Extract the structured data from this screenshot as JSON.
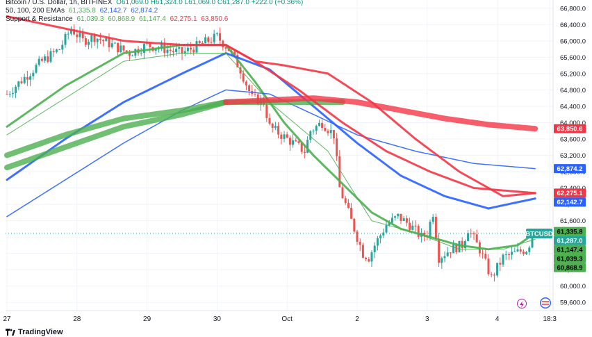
{
  "legend": {
    "symbol_line": "Bitcoin / U.S. Dollar, 1h, BITFINEX",
    "ohlc": "O61,069.0 H61,324.0 L61,069.0 C61,287.0 +222.0 (+0.36%)",
    "ema_label": "50, 100, 200 EMAs",
    "ema_values": [
      "61,335.8",
      "62,142.7",
      "62,874.2"
    ],
    "sr_label": "Support & Resistance",
    "sr_values": [
      "61,039.3",
      "60,868.9",
      "61,147.4",
      "62,275.1",
      "63,850.6"
    ]
  },
  "footer": {
    "brand": "TradingView"
  },
  "chart_data": {
    "type": "candlestick",
    "symbol": "BTCUSD",
    "ylim": [
      59400,
      67000
    ],
    "y_ticks": [
      59600,
      60000,
      60400,
      60800,
      61200,
      61600,
      62000,
      62400,
      62800,
      63200,
      63600,
      64000,
      64400,
      64800,
      65200,
      65600,
      66000,
      66400,
      66800
    ],
    "x_ticks": [
      "27",
      "28",
      "29",
      "30",
      "Oct",
      "2",
      "3",
      "4",
      "18:3"
    ],
    "x_tick_bars": [
      0,
      24,
      48,
      72,
      96,
      120,
      144,
      168,
      186
    ],
    "n_bars": 181,
    "last_price": 61287.0,
    "price_tags": [
      {
        "label": "61,335.8",
        "value": 61335.8,
        "color": "#4caf50"
      },
      {
        "label": "61,287.0",
        "value": 61287.0,
        "color": "#26a69a"
      },
      {
        "label": "61,147.4",
        "value": 61147.4,
        "color": "#4caf50"
      },
      {
        "label": "61,039.3",
        "value": 61039.3,
        "color": "#4caf50"
      },
      {
        "label": "60,868.9",
        "value": 60868.9,
        "color": "#4caf50"
      },
      {
        "label": "62,142.7",
        "value": 62142.7,
        "color": "#2962ff"
      },
      {
        "label": "62,275.1",
        "value": 62275.1,
        "color": "#f23645"
      },
      {
        "label": "62,874.2",
        "value": 62874.2,
        "color": "#2962ff"
      },
      {
        "label": "63,850.6",
        "value": 63850.6,
        "color": "#f23645"
      }
    ],
    "symbol_tag": "BTCUSD",
    "close_keypoints": [
      [
        0,
        64700
      ],
      [
        6,
        65100
      ],
      [
        12,
        65500
      ],
      [
        18,
        65800
      ],
      [
        22,
        66300
      ],
      [
        26,
        66000
      ],
      [
        30,
        66100
      ],
      [
        36,
        65900
      ],
      [
        42,
        65700
      ],
      [
        48,
        65900
      ],
      [
        54,
        65800
      ],
      [
        60,
        65700
      ],
      [
        66,
        65900
      ],
      [
        72,
        66100
      ],
      [
        76,
        65800
      ],
      [
        80,
        65300
      ],
      [
        84,
        64600
      ],
      [
        88,
        64500
      ],
      [
        90,
        63900
      ],
      [
        94,
        63700
      ],
      [
        98,
        63500
      ],
      [
        102,
        63300
      ],
      [
        104,
        63800
      ],
      [
        108,
        64000
      ],
      [
        112,
        63700
      ],
      [
        114,
        62400
      ],
      [
        118,
        61600
      ],
      [
        122,
        60800
      ],
      [
        124,
        60700
      ],
      [
        126,
        61000
      ],
      [
        130,
        61500
      ],
      [
        134,
        61700
      ],
      [
        138,
        61500
      ],
      [
        142,
        61200
      ],
      [
        144,
        61300
      ],
      [
        146,
        61800
      ],
      [
        148,
        60700
      ],
      [
        152,
        60900
      ],
      [
        156,
        61000
      ],
      [
        158,
        61400
      ],
      [
        162,
        60900
      ],
      [
        166,
        60200
      ],
      [
        170,
        60700
      ],
      [
        174,
        60800
      ],
      [
        178,
        60900
      ],
      [
        181,
        61287
      ]
    ],
    "series": [
      {
        "name": "EMA 50",
        "color": "#4caf50",
        "width": 3,
        "keypoints": [
          [
            0,
            63900
          ],
          [
            20,
            64900
          ],
          [
            40,
            65700
          ],
          [
            60,
            65900
          ],
          [
            75,
            65900
          ],
          [
            85,
            65000
          ],
          [
            95,
            64000
          ],
          [
            105,
            63200
          ],
          [
            115,
            62500
          ],
          [
            125,
            61800
          ],
          [
            135,
            61400
          ],
          [
            145,
            61200
          ],
          [
            155,
            61000
          ],
          [
            165,
            60900
          ],
          [
            175,
            61000
          ],
          [
            181,
            61300
          ]
        ]
      },
      {
        "name": "EMA 100",
        "color": "#2962ff",
        "width": 3,
        "keypoints": [
          [
            0,
            62600
          ],
          [
            20,
            63600
          ],
          [
            40,
            64500
          ],
          [
            60,
            65200
          ],
          [
            75,
            65700
          ],
          [
            90,
            65300
          ],
          [
            105,
            64400
          ],
          [
            120,
            63500
          ],
          [
            135,
            62700
          ],
          [
            150,
            62200
          ],
          [
            165,
            61900
          ],
          [
            181,
            62142.7
          ]
        ]
      },
      {
        "name": "EMA 200",
        "color": "#2962ff",
        "width": 1.5,
        "keypoints": [
          [
            0,
            61700
          ],
          [
            20,
            62600
          ],
          [
            40,
            63500
          ],
          [
            60,
            64300
          ],
          [
            75,
            64800
          ],
          [
            90,
            64700
          ],
          [
            105,
            64200
          ],
          [
            120,
            63700
          ],
          [
            140,
            63300
          ],
          [
            160,
            63000
          ],
          [
            181,
            62874.2
          ]
        ]
      },
      {
        "name": "S&R 1",
        "color": "#4caf50",
        "width": 1,
        "keypoints": [
          [
            0,
            63700
          ],
          [
            20,
            64600
          ],
          [
            40,
            65500
          ],
          [
            60,
            65700
          ],
          [
            75,
            65700
          ],
          [
            90,
            64500
          ],
          [
            110,
            63300
          ],
          [
            125,
            61600
          ],
          [
            140,
            61300
          ],
          [
            155,
            60900
          ],
          [
            170,
            60900
          ],
          [
            181,
            61147.4
          ]
        ]
      },
      {
        "name": "S&R 2",
        "color": "#4caf50",
        "width": 8,
        "keypoints": [
          [
            0,
            63200
          ],
          [
            20,
            63700
          ],
          [
            40,
            64100
          ],
          [
            60,
            64300
          ],
          [
            75,
            64500
          ],
          [
            90,
            64500
          ],
          [
            105,
            64500
          ],
          [
            115,
            64500
          ]
        ]
      },
      {
        "name": "S&R 3",
        "color": "#4caf50",
        "width": 8,
        "keypoints": [
          [
            0,
            62900
          ],
          [
            20,
            63400
          ],
          [
            40,
            63900
          ],
          [
            60,
            64200
          ],
          [
            75,
            64500
          ]
        ]
      },
      {
        "name": "S&R 4",
        "color": "#f23645",
        "width": 3,
        "keypoints": [
          [
            0,
            66600
          ],
          [
            20,
            66300
          ],
          [
            40,
            66000
          ],
          [
            60,
            65900
          ],
          [
            75,
            65900
          ],
          [
            85,
            65500
          ],
          [
            100,
            64800
          ],
          [
            115,
            64000
          ],
          [
            130,
            63300
          ],
          [
            145,
            62800
          ],
          [
            160,
            62400
          ],
          [
            181,
            62275.1
          ]
        ]
      },
      {
        "name": "S&R 5",
        "color": "#f23645",
        "width": 8,
        "keypoints": [
          [
            75,
            64500
          ],
          [
            90,
            64550
          ],
          [
            105,
            64600
          ],
          [
            120,
            64500
          ],
          [
            135,
            64300
          ],
          [
            150,
            64100
          ],
          [
            165,
            63950
          ],
          [
            181,
            63850.6
          ]
        ]
      },
      {
        "name": "S&R 6",
        "color": "#f23645",
        "width": 3,
        "keypoints": [
          [
            60,
            65900
          ],
          [
            75,
            65900
          ],
          [
            85,
            65500
          ],
          [
            95,
            65400
          ],
          [
            110,
            65200
          ],
          [
            125,
            64500
          ],
          [
            140,
            63600
          ],
          [
            155,
            62800
          ],
          [
            170,
            62200
          ],
          [
            181,
            62275.1
          ]
        ]
      }
    ]
  }
}
